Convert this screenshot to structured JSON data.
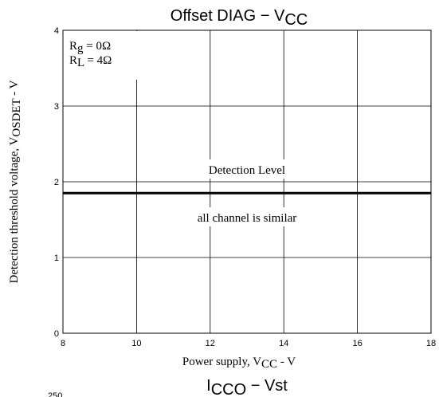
{
  "chart_data": {
    "type": "line",
    "title": [
      "Offset DIAG − V",
      "CC"
    ],
    "x_label": [
      "Power supply, V",
      "CC",
      " - V"
    ],
    "y_label": [
      "Detection threshold voltage, V",
      "OSDET",
      " - V"
    ],
    "annotations": {
      "rg": [
        "R",
        "g",
        " = 0Ω"
      ],
      "rl": [
        "R",
        "L",
        " = 4Ω"
      ],
      "level": "Detection Level",
      "similar": "all channel is similar"
    },
    "x": [
      8,
      18
    ],
    "series": [
      {
        "color": "#000000",
        "values": [
          1.85,
          1.85
        ]
      }
    ],
    "xlim": [
      8,
      18
    ],
    "xticks": [
      8,
      10,
      12,
      14,
      16,
      18
    ],
    "ylim": [
      0,
      4
    ],
    "yticks": [
      0,
      1,
      2,
      3,
      4
    ],
    "grid": true
  },
  "next_chart": {
    "title": [
      "I",
      "CCO",
      " − Vst"
    ],
    "tick": "250"
  }
}
